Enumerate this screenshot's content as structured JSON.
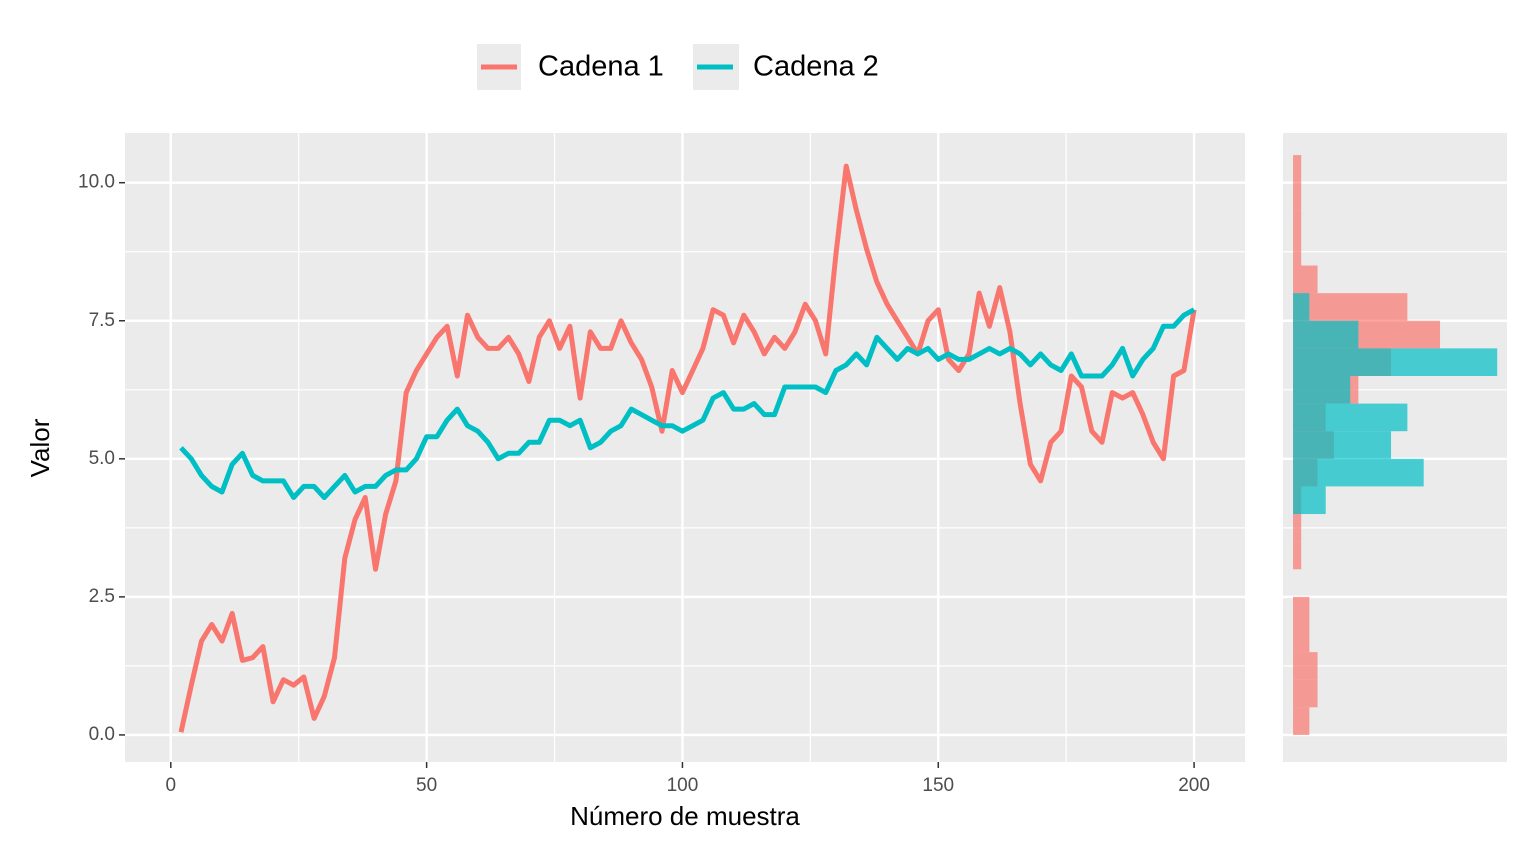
{
  "chart_data": [
    {
      "type": "line",
      "x_label": "Número de muestra",
      "y_label": "Valor",
      "legend": "top",
      "grid": true,
      "x": [
        2,
        4,
        6,
        8,
        10,
        12,
        14,
        16,
        18,
        20,
        22,
        24,
        26,
        28,
        30,
        32,
        34,
        36,
        38,
        40,
        42,
        44,
        46,
        48,
        50,
        52,
        54,
        56,
        58,
        60,
        62,
        64,
        66,
        68,
        70,
        72,
        74,
        76,
        78,
        80,
        82,
        84,
        86,
        88,
        90,
        92,
        94,
        96,
        98,
        100,
        102,
        104,
        106,
        108,
        110,
        112,
        114,
        116,
        118,
        120,
        122,
        124,
        126,
        128,
        130,
        132,
        134,
        136,
        138,
        140,
        142,
        144,
        146,
        148,
        150,
        152,
        154,
        156,
        158,
        160,
        162,
        164,
        166,
        168,
        170,
        172,
        174,
        176,
        178,
        180,
        182,
        184,
        186,
        188,
        190,
        192,
        194,
        196,
        198,
        200
      ],
      "series": [
        {
          "name": "Cadena 1",
          "color": "#F8766D",
          "values": [
            0.05,
            0.9,
            1.7,
            2.0,
            1.7,
            2.2,
            1.35,
            1.4,
            1.6,
            0.6,
            1.0,
            0.9,
            1.05,
            0.3,
            0.7,
            1.4,
            3.2,
            3.9,
            4.3,
            3.0,
            4.0,
            4.6,
            6.2,
            6.6,
            6.9,
            7.2,
            7.4,
            6.5,
            7.6,
            7.2,
            7.0,
            7.0,
            7.2,
            6.9,
            6.4,
            7.2,
            7.5,
            7.0,
            7.4,
            6.1,
            7.3,
            7.0,
            7.0,
            7.5,
            7.1,
            6.8,
            6.3,
            5.5,
            6.6,
            6.2,
            6.6,
            7.0,
            7.7,
            7.6,
            7.1,
            7.6,
            7.3,
            6.9,
            7.2,
            7.0,
            7.3,
            7.8,
            7.5,
            6.9,
            8.7,
            10.3,
            9.5,
            8.8,
            8.2,
            7.8,
            7.5,
            7.2,
            6.9,
            7.5,
            7.7,
            6.8,
            6.6,
            6.9,
            8.0,
            7.4,
            8.1,
            7.3,
            6.0,
            4.9,
            4.6,
            5.3,
            5.5,
            6.5,
            6.3,
            5.5,
            5.3,
            6.2,
            6.1,
            6.2,
            5.8,
            5.3,
            5.0,
            6.5,
            6.6,
            7.7
          ]
        },
        {
          "name": "Cadena 2",
          "color": "#00BFC4",
          "values": [
            5.2,
            5.0,
            4.7,
            4.5,
            4.4,
            4.9,
            5.1,
            4.7,
            4.6,
            4.6,
            4.6,
            4.3,
            4.5,
            4.5,
            4.3,
            4.5,
            4.7,
            4.4,
            4.5,
            4.5,
            4.7,
            4.8,
            4.8,
            5.0,
            5.4,
            5.4,
            5.7,
            5.9,
            5.6,
            5.5,
            5.3,
            5.0,
            5.1,
            5.1,
            5.3,
            5.3,
            5.7,
            5.7,
            5.6,
            5.7,
            5.2,
            5.3,
            5.5,
            5.6,
            5.9,
            5.8,
            5.7,
            5.6,
            5.6,
            5.5,
            5.6,
            5.7,
            6.1,
            6.2,
            5.9,
            5.9,
            6.0,
            5.8,
            5.8,
            6.3,
            6.3,
            6.3,
            6.3,
            6.2,
            6.6,
            6.7,
            6.9,
            6.7,
            7.2,
            7.0,
            6.8,
            7.0,
            6.9,
            7.0,
            6.8,
            6.9,
            6.8,
            6.8,
            6.9,
            7.0,
            6.9,
            7.0,
            6.9,
            6.7,
            6.9,
            6.7,
            6.6,
            6.9,
            6.5,
            6.5,
            6.5,
            6.7,
            7.0,
            6.5,
            6.8,
            7.0,
            7.4,
            7.4,
            7.6,
            7.7
          ]
        }
      ],
      "xlim": [
        -8.95,
        209.95
      ],
      "ylim": [
        -0.49,
        10.9
      ],
      "xticks": [
        0,
        50,
        100,
        150,
        200
      ],
      "yticks": [
        {
          "value": 0,
          "label": "0.0"
        },
        {
          "value": 2.5,
          "label": "2.5"
        },
        {
          "value": 5,
          "label": "5.0"
        },
        {
          "value": 7.5,
          "label": "7.5"
        },
        {
          "value": 10,
          "label": "10.0"
        }
      ]
    },
    {
      "type": "histogram",
      "orientation": "horizontal",
      "bins": [
        0,
        0.5,
        1,
        1.5,
        2,
        2.5,
        3,
        3.5,
        4,
        4.5,
        5,
        5.5,
        6,
        6.5,
        7,
        7.5,
        8,
        8.5,
        9,
        9.5,
        10,
        10.5
      ],
      "series": [
        {
          "name": "Cadena 1",
          "color": "#F8766D",
          "values": [
            2,
            3,
            3,
            2,
            2,
            0,
            1,
            1,
            1,
            3,
            5,
            4,
            8,
            12,
            18,
            14,
            3,
            1,
            1,
            1,
            1
          ]
        },
        {
          "name": "Cadena 2",
          "color": "#00BFC4",
          "values": [
            0,
            0,
            0,
            0,
            0,
            0,
            0,
            0,
            4,
            16,
            12,
            14,
            7,
            25,
            8,
            2,
            0,
            0,
            0,
            0,
            0
          ]
        }
      ],
      "xlim": [
        -1.23,
        26.2
      ],
      "ylim": [
        -0.49,
        10.9
      ],
      "yticks": [
        0,
        2.5,
        5,
        7.5,
        10
      ],
      "grid": true
    }
  ]
}
